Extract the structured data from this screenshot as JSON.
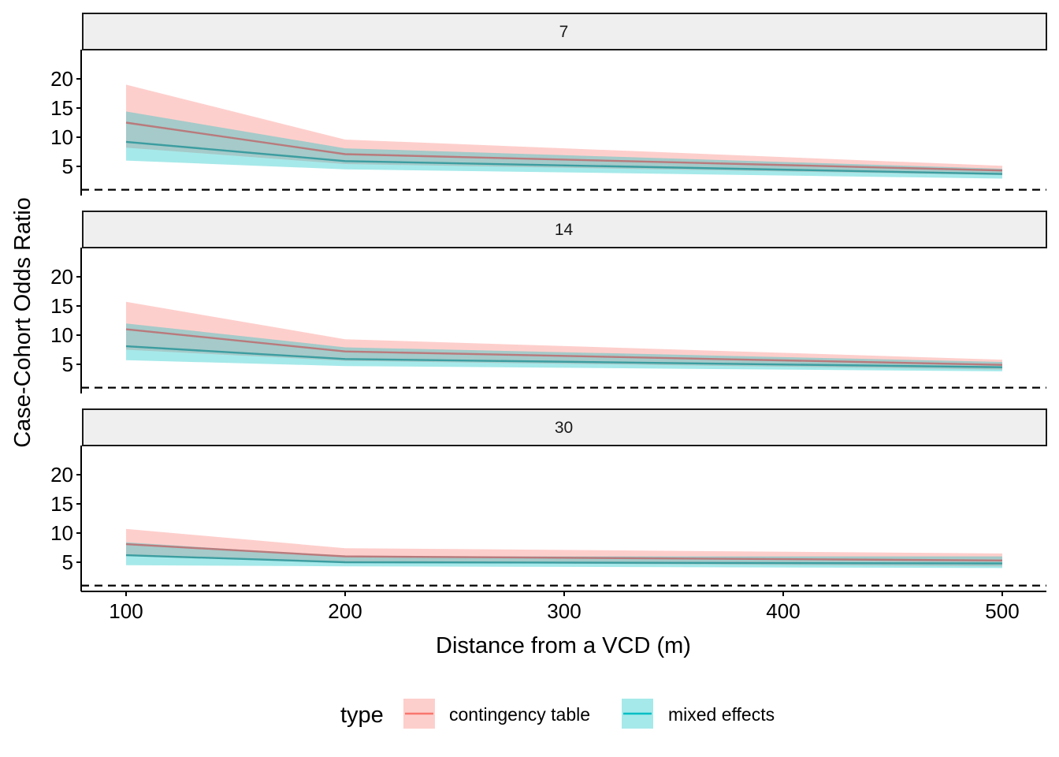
{
  "chart_data": {
    "type": "area",
    "facet_variable": "",
    "facets": [
      "7",
      "14",
      "30"
    ],
    "x": [
      100,
      200,
      500
    ],
    "xlabel": "Distance from a VCD (m)",
    "ylabel": "Case-Cohort Odds Ratio",
    "xlim": [
      80,
      520
    ],
    "ylim": [
      0,
      25
    ],
    "x_ticks": [
      100,
      200,
      300,
      400,
      500
    ],
    "y_ticks": [
      5,
      10,
      15,
      20
    ],
    "reference_line": {
      "y": 1,
      "style": "dashed"
    },
    "grid": false,
    "legend": {
      "title": "type",
      "position": "bottom"
    },
    "series_colors": {
      "contingency table": "#F8766D",
      "mixed effects": "#00BFC4"
    },
    "panels": [
      {
        "facet": "7",
        "series": [
          {
            "name": "contingency table",
            "estimate": [
              12.5,
              7.1,
              4.3
            ],
            "lower": [
              8.2,
              5.4,
              3.5
            ],
            "upper": [
              19.0,
              9.6,
              5.1
            ]
          },
          {
            "name": "mixed effects",
            "estimate": [
              9.2,
              5.9,
              3.7
            ],
            "lower": [
              6.0,
              4.5,
              2.9
            ],
            "upper": [
              14.4,
              8.1,
              4.6
            ]
          }
        ]
      },
      {
        "facet": "14",
        "series": [
          {
            "name": "contingency table",
            "estimate": [
              11.0,
              7.2,
              4.9
            ],
            "lower": [
              7.5,
              5.6,
              4.1
            ],
            "upper": [
              15.7,
              9.3,
              5.8
            ]
          },
          {
            "name": "mixed effects",
            "estimate": [
              8.1,
              5.9,
              4.5
            ],
            "lower": [
              5.7,
              4.7,
              3.8
            ],
            "upper": [
              12.0,
              7.9,
              5.4
            ]
          }
        ]
      },
      {
        "facet": "30",
        "series": [
          {
            "name": "contingency table",
            "estimate": [
              8.1,
              6.0,
              5.3
            ],
            "lower": [
              6.2,
              5.0,
              4.3
            ],
            "upper": [
              10.7,
              7.4,
              6.5
            ]
          },
          {
            "name": "mixed effects",
            "estimate": [
              6.2,
              5.0,
              4.8
            ],
            "lower": [
              4.5,
              4.3,
              4.0
            ],
            "upper": [
              8.4,
              6.0,
              6.0
            ]
          }
        ]
      }
    ]
  }
}
